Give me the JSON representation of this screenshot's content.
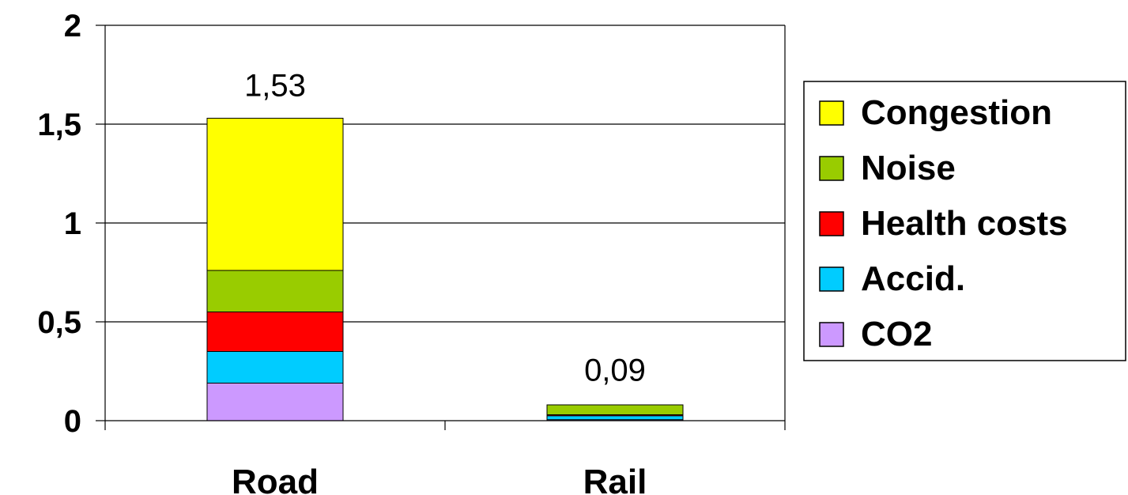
{
  "chart_data": {
    "type": "bar",
    "stacked": true,
    "categories": [
      "Road",
      "Rail"
    ],
    "series": [
      {
        "name": "CO2",
        "color": "#cc99ff",
        "values": [
          0.19,
          0.005
        ]
      },
      {
        "name": "Accid.",
        "color": "#00ccff",
        "values": [
          0.16,
          0.02
        ]
      },
      {
        "name": "Health costs",
        "color": "#ff0000",
        "values": [
          0.2,
          0.005
        ]
      },
      {
        "name": "Noise",
        "color": "#99cc00",
        "values": [
          0.21,
          0.05
        ]
      },
      {
        "name": "Congestion",
        "color": "#ffff00",
        "values": [
          0.77,
          0.0
        ]
      }
    ],
    "totals": [
      1.53,
      0.09
    ],
    "total_labels": [
      "1,53",
      "0,09"
    ],
    "ylim": [
      0,
      2
    ],
    "yticks": [
      0,
      0.5,
      1,
      1.5,
      2
    ],
    "ytick_labels": [
      "0",
      "0,5",
      "1",
      "1,5",
      "2"
    ],
    "grid": true,
    "legend_position": "right",
    "legend_order": [
      "Congestion",
      "Noise",
      "Health costs",
      "Accid.",
      "CO2"
    ],
    "title": "",
    "xlabel": "",
    "ylabel": ""
  }
}
